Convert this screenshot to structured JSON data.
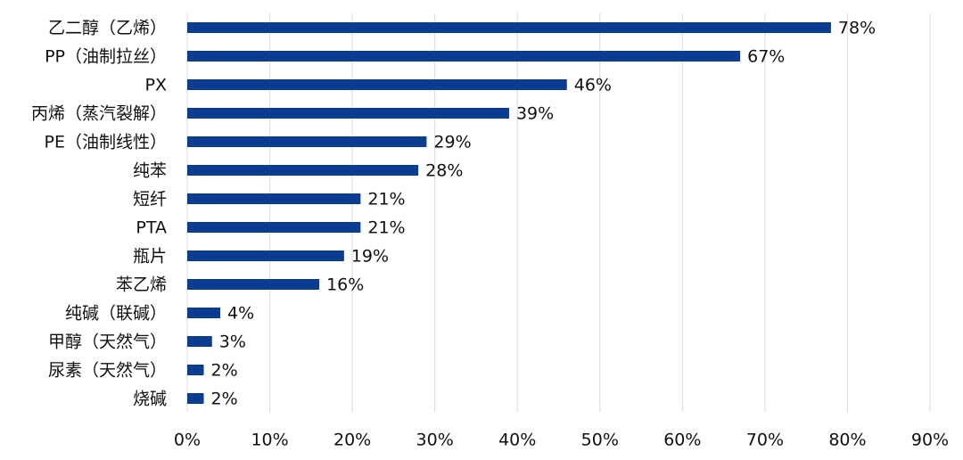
{
  "chart_data": {
    "type": "hbar",
    "categories": [
      "乙二醇（乙烯）",
      "PP（油制拉丝）",
      "PX",
      "丙烯（蒸汽裂解）",
      "PE（油制线性）",
      "纯苯",
      "短纤",
      "PTA",
      "瓶片",
      "苯乙烯",
      "纯碱（联碱）",
      "甲醇（天然气）",
      "尿素（天然气）",
      "烧碱"
    ],
    "values": [
      78,
      67,
      46,
      39,
      29,
      28,
      21,
      21,
      19,
      16,
      4,
      3,
      2,
      2
    ],
    "value_labels": [
      "78%",
      "67%",
      "46%",
      "39%",
      "29%",
      "28%",
      "21%",
      "21%",
      "19%",
      "16%",
      "4%",
      "3%",
      "2%",
      "2%"
    ],
    "color": "#0a3d91",
    "xlim": [
      0,
      90
    ],
    "xticks": [
      {
        "value": 0,
        "label": "0%"
      },
      {
        "value": 10,
        "label": "10%"
      },
      {
        "value": 20,
        "label": "20%"
      },
      {
        "value": 30,
        "label": "30%"
      },
      {
        "value": 40,
        "label": "40%"
      },
      {
        "value": 50,
        "label": "50%"
      },
      {
        "value": 60,
        "label": "60%"
      },
      {
        "value": 70,
        "label": "70%"
      },
      {
        "value": 80,
        "label": "80%"
      },
      {
        "value": 90,
        "label": "90%"
      }
    ],
    "grid": true
  }
}
